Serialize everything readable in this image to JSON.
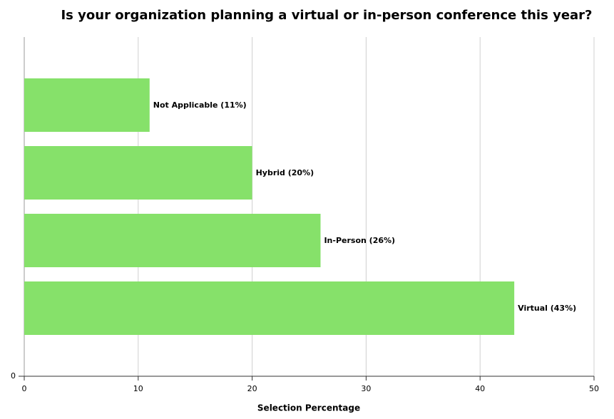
{
  "chart_data": {
    "type": "bar",
    "orientation": "horizontal",
    "title": "Is your organization planning a virtual or in-person conference this year?",
    "x_label": "Selection Percentage",
    "values": [
      11,
      20,
      26,
      43
    ],
    "value_labels": [
      "Not Applicable (11%)",
      "Hybrid (20%)",
      "In-Person (26%)",
      "Virtual (43%)"
    ],
    "color": "#86e16a",
    "xlim": [
      0,
      50
    ],
    "xticks": [
      0,
      10,
      20,
      30,
      40,
      50
    ],
    "yticks": [
      0
    ],
    "grid": true
  }
}
